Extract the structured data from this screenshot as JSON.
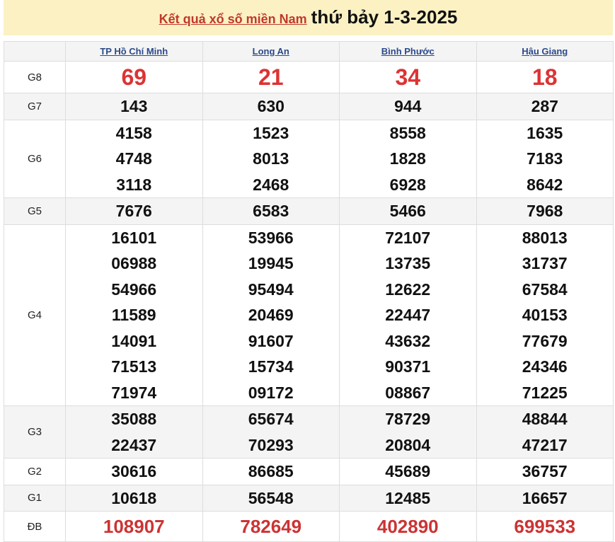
{
  "header": {
    "link": "Kết quả xổ số miền Nam",
    "date": "thứ bảy 1-3-2025"
  },
  "provinces": [
    "TP Hồ Chí Minh",
    "Long An",
    "Bình Phước",
    "Hậu Giang"
  ],
  "prizes": [
    {
      "label": "G8",
      "values": [
        [
          "69"
        ],
        [
          "21"
        ],
        [
          "34"
        ],
        [
          "18"
        ]
      ]
    },
    {
      "label": "G7",
      "values": [
        [
          "143"
        ],
        [
          "630"
        ],
        [
          "944"
        ],
        [
          "287"
        ]
      ]
    },
    {
      "label": "G6",
      "values": [
        [
          "4158",
          "4748",
          "3118"
        ],
        [
          "1523",
          "8013",
          "2468"
        ],
        [
          "8558",
          "1828",
          "6928"
        ],
        [
          "1635",
          "7183",
          "8642"
        ]
      ]
    },
    {
      "label": "G5",
      "values": [
        [
          "7676"
        ],
        [
          "6583"
        ],
        [
          "5466"
        ],
        [
          "7968"
        ]
      ]
    },
    {
      "label": "G4",
      "values": [
        [
          "16101",
          "06988",
          "54966",
          "11589",
          "14091",
          "71513",
          "71974"
        ],
        [
          "53966",
          "19945",
          "95494",
          "20469",
          "91607",
          "15734",
          "09172"
        ],
        [
          "72107",
          "13735",
          "12622",
          "22447",
          "43632",
          "90371",
          "08867"
        ],
        [
          "88013",
          "31737",
          "67584",
          "40153",
          "77679",
          "24346",
          "71225"
        ]
      ]
    },
    {
      "label": "G3",
      "values": [
        [
          "35088",
          "22437"
        ],
        [
          "65674",
          "70293"
        ],
        [
          "78729",
          "20804"
        ],
        [
          "48844",
          "47217"
        ]
      ]
    },
    {
      "label": "G2",
      "values": [
        [
          "30616"
        ],
        [
          "86685"
        ],
        [
          "45689"
        ],
        [
          "36757"
        ]
      ]
    },
    {
      "label": "G1",
      "values": [
        [
          "10618"
        ],
        [
          "56548"
        ],
        [
          "12485"
        ],
        [
          "16657"
        ]
      ]
    },
    {
      "label": "ĐB",
      "values": [
        [
          "108907"
        ],
        [
          "782649"
        ],
        [
          "402890"
        ],
        [
          "699533"
        ]
      ]
    }
  ],
  "colors": {
    "accent_red": "#d33333",
    "title_bg": "#fbf1c3",
    "link_blue": "#2a4a8a"
  }
}
